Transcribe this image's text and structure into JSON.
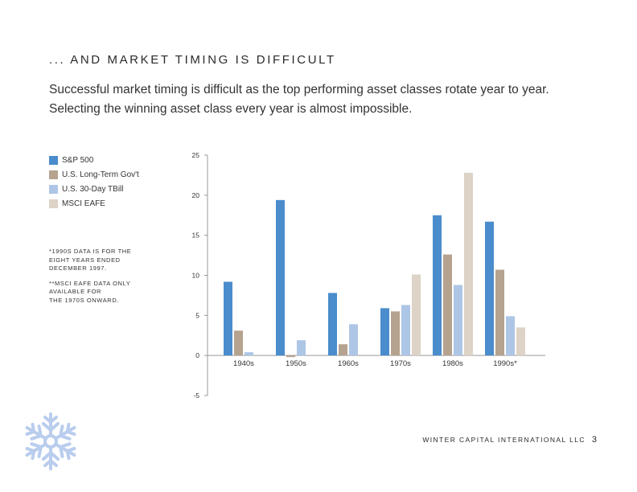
{
  "heading": "... AND MARKET TIMING IS DIFFICULT",
  "intro": {
    "line1": "Successful market timing is difficult as the top performing asset classes rotate year to year.",
    "line2": "Selecting the winning asset class every year is almost impossible."
  },
  "notes": {
    "note1": "*1990s data is for the\neight years ended\nDecember 1997.",
    "note2": "**MSCI EAFE data only\navailable for\nthe 1970s onward."
  },
  "footer": {
    "company": "Winter Capital International LLC",
    "page": "3"
  },
  "colors": {
    "sp500": "#4a8ccc",
    "longterm": "#b5a38f",
    "tbill": "#aec6e6",
    "eafe": "#ddd3c6",
    "axis": "#999999",
    "snowflake": "#b9cdee"
  },
  "chart_data": {
    "type": "bar",
    "categories": [
      "1940s",
      "1950s",
      "1960s",
      "1970s",
      "1980s",
      "1990s*"
    ],
    "series": [
      {
        "name": "S&P 500",
        "values": [
          9.2,
          19.4,
          7.8,
          5.9,
          17.5,
          16.7
        ]
      },
      {
        "name": "U.S. Long-Term Gov't",
        "values": [
          3.1,
          -0.2,
          1.4,
          5.5,
          12.6,
          10.7
        ]
      },
      {
        "name": "U.S. 30-Day TBill",
        "values": [
          0.4,
          1.9,
          3.9,
          6.3,
          8.8,
          4.9
        ]
      },
      {
        "name": "MSCI EAFE",
        "values": [
          null,
          null,
          null,
          10.1,
          22.8,
          3.5
        ]
      }
    ],
    "ylim": [
      -5,
      25
    ],
    "yticks": [
      "25",
      "20",
      "15",
      "10",
      "5",
      "0",
      "-5"
    ],
    "legend": "left"
  }
}
